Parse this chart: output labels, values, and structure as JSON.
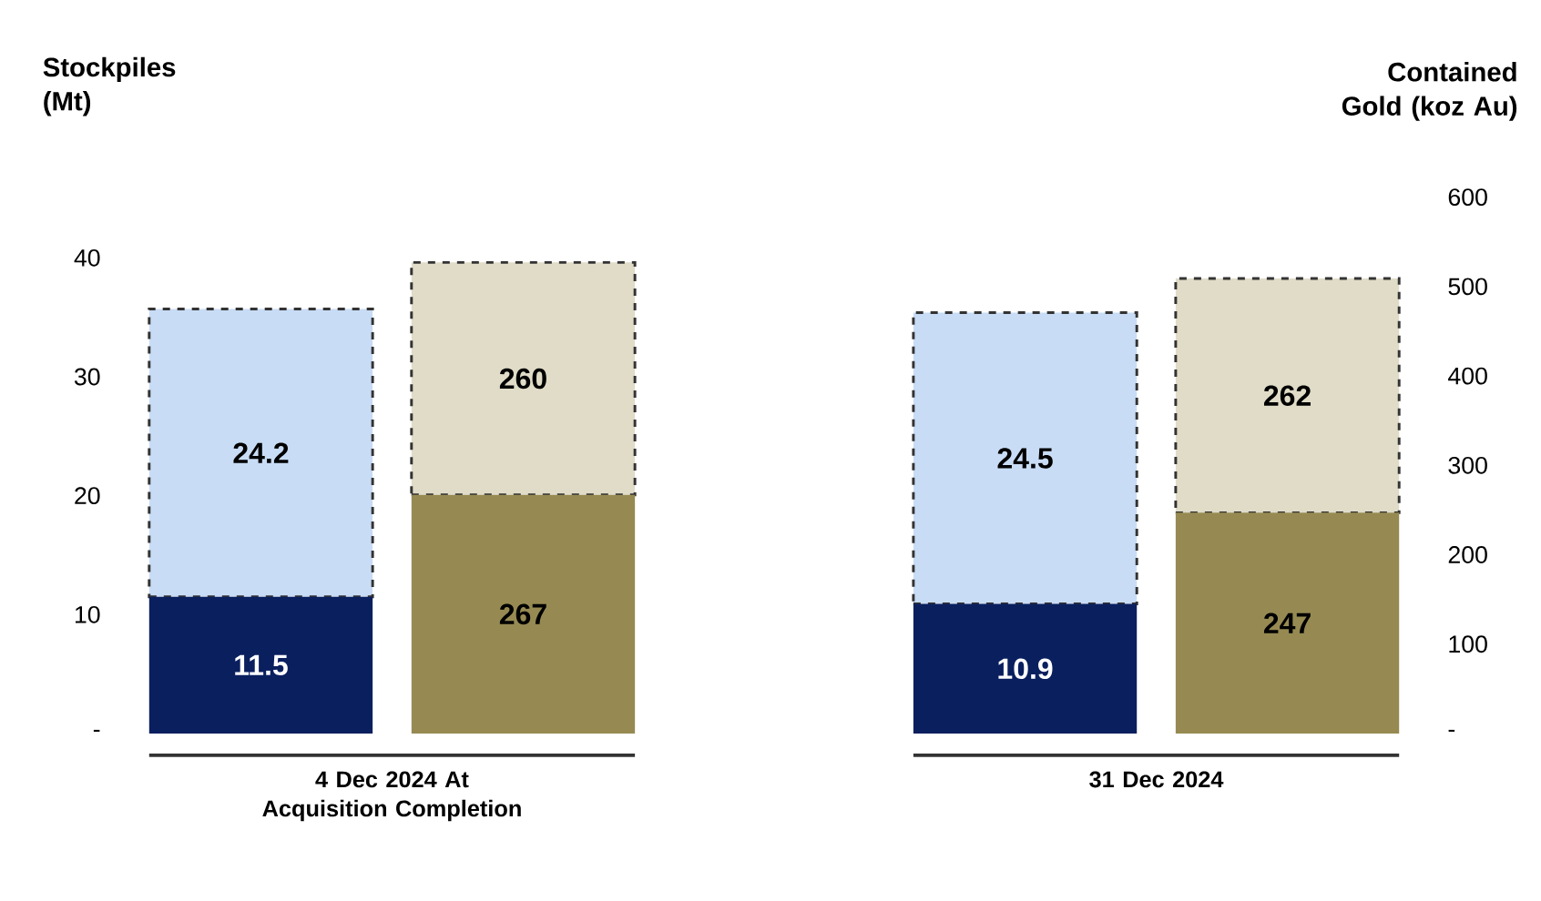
{
  "chart_data": {
    "type": "bar",
    "stacked": true,
    "ylabel": "Stockpiles (Mt)",
    "y2label": "Contained Gold (koz Au)",
    "categories": [
      "4 Dec 2024 At Acquisition  Completion",
      "31 Dec 2024"
    ],
    "ylim": [
      0,
      40
    ],
    "yticks": [
      {
        "value": 0,
        "label": "-"
      },
      10,
      20,
      30,
      40
    ],
    "y2lim": [
      0,
      600
    ],
    "y2ticks": [
      {
        "value": 0,
        "label": "-"
      },
      100,
      200,
      300,
      400,
      500,
      600
    ],
    "data_labels": true,
    "series": [
      {
        "color": "#0a1f5e",
        "axis": "y",
        "values": [
          11.5,
          10.9
        ]
      },
      {
        "color": "#c8dcf5",
        "axis": "y",
        "line_style": "dashed",
        "values": [
          24.2,
          24.5
        ]
      },
      {
        "color": "#968a52",
        "axis": "y2",
        "values": [
          267,
          247
        ]
      },
      {
        "color": "#e0dcc8",
        "axis": "y2",
        "line_style": "dashed",
        "values": [
          260,
          262
        ]
      }
    ]
  }
}
